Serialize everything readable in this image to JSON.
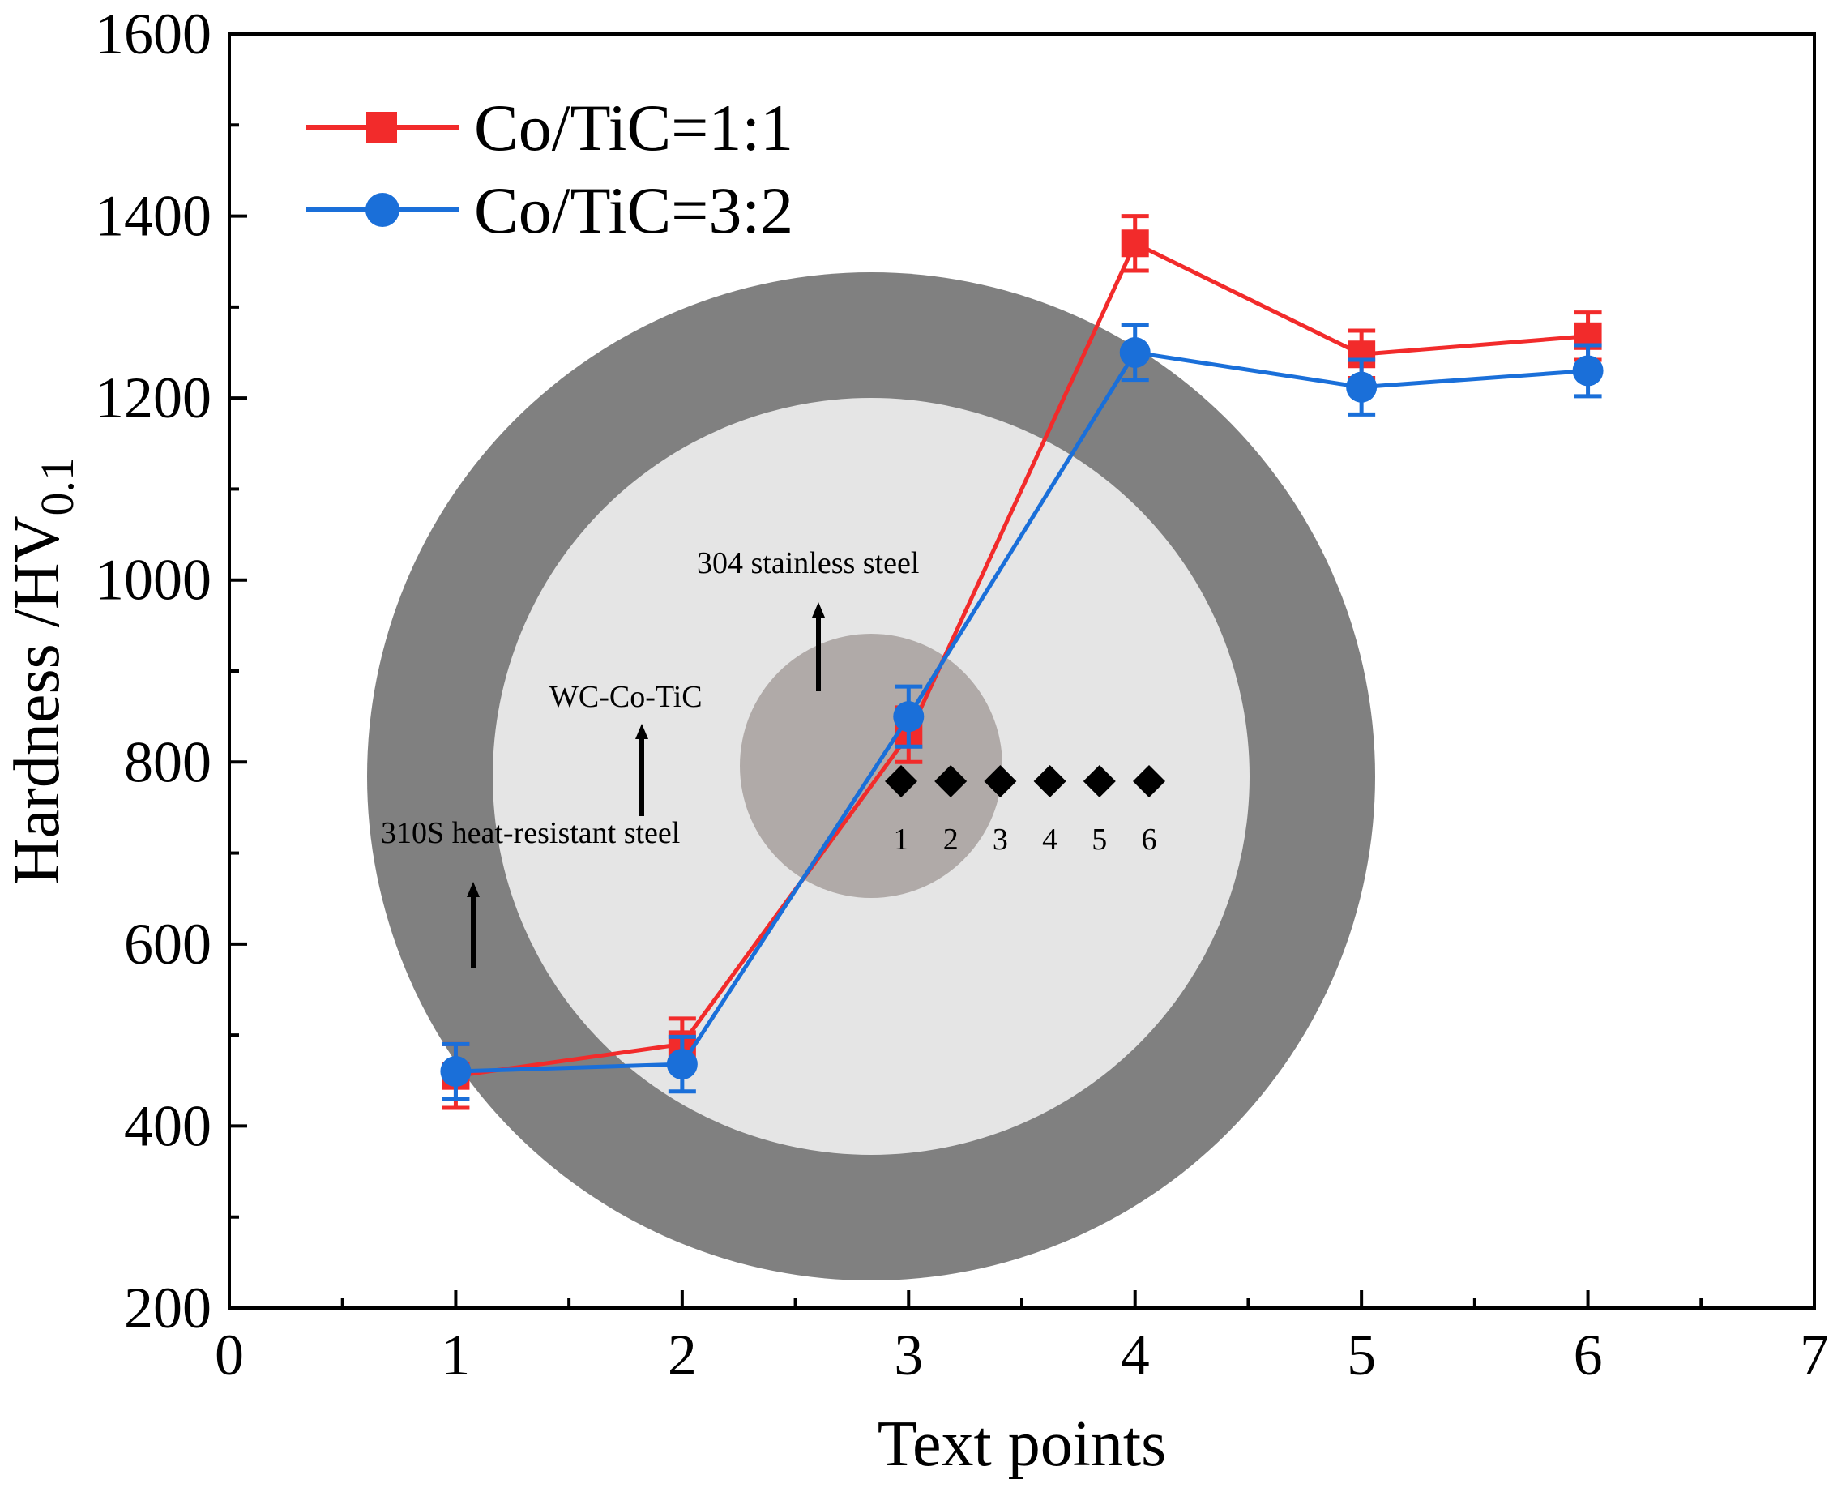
{
  "chart_data": {
    "type": "line",
    "title": "",
    "xlabel": "Text points",
    "ylabel": "Hardness /HV",
    "ylabel_subscript": "0.1",
    "xlim": [
      0,
      7
    ],
    "ylim": [
      200,
      1600
    ],
    "x_major_ticks": [
      0,
      1,
      2,
      3,
      4,
      5,
      6,
      7
    ],
    "x_minor_ticks": [
      0.5,
      1.5,
      2.5,
      3.5,
      4.5,
      5.5,
      6.5
    ],
    "y_major_ticks": [
      200,
      400,
      600,
      800,
      1000,
      1200,
      1400,
      1600
    ],
    "y_minor_ticks": [
      300,
      500,
      700,
      900,
      1100,
      1300,
      1500
    ],
    "legend_position": "top-left",
    "grid": false,
    "series": [
      {
        "name": "Co/TiC=1:1",
        "color": "#f22b2b",
        "marker": "square",
        "x": [
          1,
          2,
          3,
          4,
          5,
          6
        ],
        "y": [
          455,
          490,
          830,
          1370,
          1248,
          1268
        ],
        "err": [
          35,
          28,
          30,
          30,
          26,
          26
        ]
      },
      {
        "name": "Co/TiC=3:2",
        "color": "#1a6fd9",
        "marker": "circle",
        "x": [
          1,
          2,
          3,
          4,
          5,
          6
        ],
        "y": [
          460,
          468,
          850,
          1250,
          1212,
          1230
        ],
        "err": [
          30,
          30,
          33,
          30,
          30,
          28
        ]
      }
    ]
  },
  "inset": {
    "outer_label": "310S heat-resistant steel",
    "middle_label": "WC-Co-TiC",
    "inner_label": "304 stainless steel",
    "point_labels": [
      "1",
      "2",
      "3",
      "4",
      "5",
      "6"
    ],
    "colors": {
      "outer_ring": "#808080",
      "middle_disk": "#e5e5e5",
      "core": "#b0aaa8",
      "markers": "#000000"
    }
  }
}
